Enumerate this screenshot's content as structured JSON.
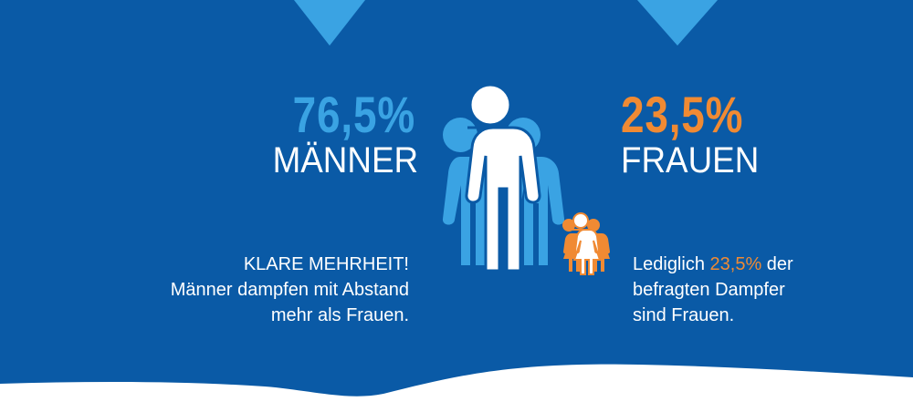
{
  "colors": {
    "background": "#0a5aa6",
    "accent_blue": "#3aa3e3",
    "accent_orange": "#f08a33",
    "text": "#ffffff"
  },
  "men": {
    "percent": "76,5%",
    "label": "MÄNNER",
    "text_line1": "KLARE MEHRHEIT!",
    "text_line2": "Männer dampfen mit Abstand",
    "text_line3": "mehr als Frauen."
  },
  "women": {
    "percent": "23,5%",
    "label": "FRAUEN",
    "text_line1_prefix": "Lediglich ",
    "text_line1_highlight": "23,5%",
    "text_line1_suffix": " der",
    "text_line2": "befragten Dampfer",
    "text_line3": "sind Frauen."
  },
  "icons": {
    "men_group": "men-group-icon",
    "women_group": "women-group-icon"
  }
}
